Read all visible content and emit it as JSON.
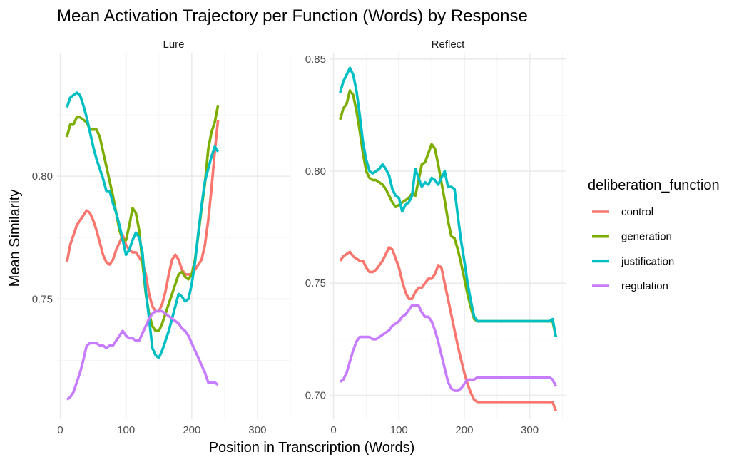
{
  "chart_data": {
    "type": "line",
    "title": "Mean Activation Trajectory per Function (Words) by Response",
    "xlabel": "Position in Transcription (Words)",
    "ylabel": "Mean Similarity",
    "legend": {
      "title": "deliberation_function",
      "placement": "right",
      "entries": [
        "control",
        "generation",
        "justification",
        "regulation"
      ]
    },
    "colors": {
      "control": "#F8766D",
      "generation": "#7CAE00",
      "justification": "#00BFC4",
      "regulation": "#C77CFF"
    },
    "grid": true,
    "panels": [
      {
        "name": "Lure",
        "xlim": [
          -5,
          350
        ],
        "ylim": [
          0.701,
          0.85
        ],
        "xticks": [
          0,
          100,
          200,
          300
        ],
        "xtick_labels": [
          "0",
          "100",
          "200",
          "300"
        ],
        "yticks": [
          0.75,
          0.8
        ],
        "ytick_labels": [
          "0.75",
          "0.80"
        ],
        "series": [
          {
            "name": "control",
            "x": [
              10,
              15,
              20,
              25,
              30,
              35,
              40,
              45,
              50,
              55,
              60,
              65,
              70,
              75,
              80,
              85,
              90,
              95,
              100,
              105,
              110,
              115,
              120,
              125,
              130,
              135,
              140,
              145,
              150,
              155,
              160,
              165,
              170,
              175,
              180,
              185,
              190,
              195,
              200,
              205,
              210,
              215,
              220,
              225,
              230,
              235,
              240
            ],
            "y": [
              0.765,
              0.772,
              0.776,
              0.78,
              0.782,
              0.784,
              0.786,
              0.785,
              0.782,
              0.778,
              0.773,
              0.768,
              0.765,
              0.764,
              0.766,
              0.77,
              0.773,
              0.776,
              0.772,
              0.77,
              0.769,
              0.769,
              0.767,
              0.765,
              0.76,
              0.752,
              0.747,
              0.745,
              0.745,
              0.748,
              0.753,
              0.76,
              0.766,
              0.768,
              0.766,
              0.762,
              0.76,
              0.76,
              0.76,
              0.762,
              0.764,
              0.766,
              0.772,
              0.782,
              0.795,
              0.81,
              0.823
            ]
          },
          {
            "name": "generation",
            "x": [
              10,
              15,
              20,
              25,
              30,
              35,
              40,
              45,
              50,
              55,
              60,
              65,
              70,
              75,
              80,
              85,
              90,
              95,
              100,
              105,
              110,
              115,
              120,
              125,
              130,
              135,
              140,
              145,
              150,
              155,
              160,
              165,
              170,
              175,
              180,
              185,
              190,
              195,
              200,
              205,
              210,
              215,
              220,
              225,
              230,
              235,
              240
            ],
            "y": [
              0.816,
              0.821,
              0.821,
              0.824,
              0.824,
              0.823,
              0.822,
              0.819,
              0.819,
              0.819,
              0.816,
              0.81,
              0.804,
              0.798,
              0.792,
              0.785,
              0.778,
              0.774,
              0.774,
              0.78,
              0.787,
              0.785,
              0.778,
              0.765,
              0.752,
              0.744,
              0.739,
              0.737,
              0.737,
              0.74,
              0.744,
              0.748,
              0.752,
              0.756,
              0.76,
              0.761,
              0.759,
              0.758,
              0.76,
              0.766,
              0.776,
              0.787,
              0.797,
              0.811,
              0.818,
              0.822,
              0.829
            ]
          },
          {
            "name": "justification",
            "x": [
              10,
              15,
              20,
              25,
              30,
              35,
              40,
              45,
              50,
              55,
              60,
              65,
              70,
              75,
              80,
              85,
              90,
              95,
              100,
              105,
              110,
              115,
              120,
              125,
              130,
              135,
              140,
              145,
              150,
              155,
              160,
              165,
              170,
              175,
              180,
              185,
              190,
              195,
              200,
              205,
              210,
              215,
              220,
              225,
              230,
              235,
              240
            ],
            "y": [
              0.828,
              0.832,
              0.833,
              0.834,
              0.833,
              0.829,
              0.824,
              0.818,
              0.812,
              0.807,
              0.803,
              0.799,
              0.794,
              0.794,
              0.789,
              0.785,
              0.78,
              0.774,
              0.768,
              0.77,
              0.774,
              0.777,
              0.775,
              0.769,
              0.753,
              0.742,
              0.73,
              0.727,
              0.726,
              0.729,
              0.733,
              0.737,
              0.742,
              0.747,
              0.752,
              0.751,
              0.749,
              0.75,
              0.756,
              0.765,
              0.777,
              0.788,
              0.798,
              0.803,
              0.808,
              0.812,
              0.81
            ]
          },
          {
            "name": "regulation",
            "x": [
              10,
              15,
              20,
              25,
              30,
              35,
              40,
              45,
              50,
              55,
              60,
              65,
              70,
              75,
              80,
              85,
              90,
              95,
              100,
              105,
              110,
              115,
              120,
              125,
              130,
              135,
              140,
              145,
              150,
              155,
              160,
              165,
              170,
              175,
              180,
              185,
              190,
              195,
              200,
              205,
              210,
              215,
              220,
              225,
              230,
              235,
              240
            ],
            "y": [
              0.709,
              0.71,
              0.712,
              0.716,
              0.72,
              0.725,
              0.731,
              0.732,
              0.732,
              0.732,
              0.731,
              0.731,
              0.73,
              0.731,
              0.731,
              0.733,
              0.735,
              0.737,
              0.735,
              0.734,
              0.734,
              0.733,
              0.733,
              0.736,
              0.739,
              0.742,
              0.744,
              0.745,
              0.745,
              0.745,
              0.744,
              0.743,
              0.742,
              0.741,
              0.74,
              0.738,
              0.737,
              0.735,
              0.732,
              0.729,
              0.726,
              0.723,
              0.72,
              0.716,
              0.716,
              0.716,
              0.715
            ]
          }
        ]
      },
      {
        "name": "Reflect",
        "xlim": [
          -5,
          355
        ],
        "ylim": [
          0.6893,
          0.8525
        ],
        "xticks": [
          0,
          100,
          200,
          300
        ],
        "xtick_labels": [
          "0",
          "100",
          "200",
          "300"
        ],
        "yticks": [
          0.7,
          0.75,
          0.8,
          0.85
        ],
        "ytick_labels": [
          "0.70",
          "0.75",
          "0.80",
          "0.85"
        ],
        "series": [
          {
            "name": "control",
            "x": [
              10,
              15,
              20,
              25,
              30,
              35,
              40,
              45,
              50,
              55,
              60,
              65,
              70,
              75,
              80,
              85,
              90,
              95,
              100,
              105,
              110,
              115,
              120,
              125,
              130,
              135,
              140,
              145,
              150,
              155,
              160,
              165,
              170,
              175,
              180,
              185,
              190,
              195,
              200,
              205,
              210,
              215,
              220,
              230,
              240,
              250,
              260,
              270,
              280,
              290,
              300,
              310,
              320,
              330,
              335,
              340
            ],
            "y": [
              0.76,
              0.762,
              0.763,
              0.764,
              0.762,
              0.761,
              0.76,
              0.76,
              0.757,
              0.755,
              0.755,
              0.756,
              0.758,
              0.76,
              0.763,
              0.766,
              0.765,
              0.761,
              0.757,
              0.751,
              0.746,
              0.743,
              0.743,
              0.746,
              0.748,
              0.748,
              0.75,
              0.752,
              0.752,
              0.754,
              0.758,
              0.757,
              0.75,
              0.743,
              0.736,
              0.729,
              0.722,
              0.716,
              0.71,
              0.705,
              0.701,
              0.698,
              0.697,
              0.697,
              0.697,
              0.697,
              0.697,
              0.697,
              0.697,
              0.697,
              0.697,
              0.697,
              0.697,
              0.697,
              0.697,
              0.693
            ]
          },
          {
            "name": "generation",
            "x": [
              10,
              15,
              20,
              25,
              30,
              35,
              40,
              45,
              50,
              55,
              60,
              65,
              70,
              75,
              80,
              85,
              90,
              95,
              100,
              105,
              110,
              115,
              120,
              125,
              130,
              135,
              140,
              145,
              150,
              155,
              160,
              165,
              170,
              175,
              180,
              185,
              190,
              195,
              200,
              205,
              210,
              215,
              220,
              230,
              240,
              250,
              260,
              270,
              280,
              290,
              300,
              310,
              320,
              330,
              335,
              340
            ],
            "y": [
              0.823,
              0.828,
              0.83,
              0.836,
              0.834,
              0.827,
              0.818,
              0.808,
              0.8,
              0.797,
              0.796,
              0.796,
              0.795,
              0.794,
              0.792,
              0.789,
              0.786,
              0.784,
              0.785,
              0.786,
              0.787,
              0.788,
              0.79,
              0.789,
              0.796,
              0.803,
              0.804,
              0.808,
              0.812,
              0.81,
              0.803,
              0.795,
              0.787,
              0.778,
              0.771,
              0.77,
              0.765,
              0.759,
              0.752,
              0.745,
              0.739,
              0.734,
              0.733,
              0.733,
              0.733,
              0.733,
              0.733,
              0.733,
              0.733,
              0.733,
              0.733,
              0.733,
              0.733,
              0.733,
              0.733,
              0.726
            ]
          },
          {
            "name": "justification",
            "x": [
              10,
              15,
              20,
              25,
              30,
              35,
              40,
              45,
              50,
              55,
              60,
              65,
              70,
              75,
              80,
              85,
              90,
              95,
              100,
              105,
              110,
              115,
              120,
              125,
              130,
              135,
              140,
              145,
              150,
              155,
              160,
              165,
              170,
              175,
              180,
              185,
              190,
              195,
              200,
              205,
              210,
              215,
              220,
              230,
              240,
              250,
              260,
              270,
              280,
              290,
              300,
              310,
              320,
              330,
              335,
              340
            ],
            "y": [
              0.835,
              0.84,
              0.843,
              0.846,
              0.843,
              0.836,
              0.825,
              0.813,
              0.805,
              0.8,
              0.799,
              0.8,
              0.801,
              0.803,
              0.801,
              0.798,
              0.792,
              0.789,
              0.788,
              0.782,
              0.785,
              0.786,
              0.789,
              0.801,
              0.797,
              0.793,
              0.795,
              0.794,
              0.797,
              0.796,
              0.794,
              0.797,
              0.8,
              0.793,
              0.793,
              0.792,
              0.78,
              0.769,
              0.76,
              0.75,
              0.742,
              0.735,
              0.733,
              0.733,
              0.733,
              0.733,
              0.733,
              0.733,
              0.733,
              0.733,
              0.733,
              0.733,
              0.733,
              0.733,
              0.734,
              0.726
            ]
          },
          {
            "name": "regulation",
            "x": [
              10,
              15,
              20,
              25,
              30,
              35,
              40,
              45,
              50,
              55,
              60,
              65,
              70,
              75,
              80,
              85,
              90,
              95,
              100,
              105,
              110,
              115,
              120,
              125,
              130,
              135,
              140,
              145,
              150,
              155,
              160,
              165,
              170,
              175,
              180,
              185,
              190,
              195,
              200,
              205,
              210,
              215,
              220,
              230,
              240,
              250,
              260,
              270,
              280,
              290,
              300,
              310,
              320,
              330,
              335,
              340
            ],
            "y": [
              0.706,
              0.707,
              0.71,
              0.715,
              0.72,
              0.724,
              0.726,
              0.726,
              0.726,
              0.726,
              0.725,
              0.725,
              0.726,
              0.727,
              0.728,
              0.729,
              0.731,
              0.732,
              0.733,
              0.735,
              0.736,
              0.738,
              0.74,
              0.74,
              0.74,
              0.737,
              0.735,
              0.735,
              0.733,
              0.729,
              0.724,
              0.718,
              0.712,
              0.706,
              0.703,
              0.702,
              0.702,
              0.703,
              0.705,
              0.707,
              0.707,
              0.707,
              0.708,
              0.708,
              0.708,
              0.708,
              0.708,
              0.708,
              0.708,
              0.708,
              0.708,
              0.708,
              0.708,
              0.708,
              0.707,
              0.704
            ]
          }
        ]
      }
    ]
  }
}
